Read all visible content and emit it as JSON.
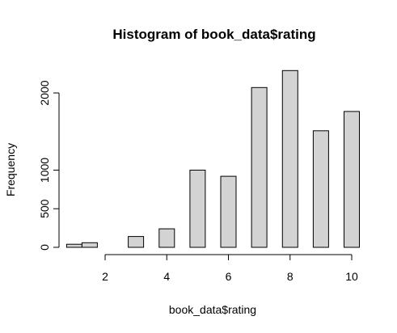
{
  "chart_data": {
    "type": "bar",
    "title": "Histogram of book_data$rating",
    "xlabel": "book_data$rating",
    "ylabel": "Frequency",
    "bin_centers": [
      1,
      1.5,
      3,
      4,
      5,
      6,
      7,
      8,
      9,
      10
    ],
    "values": [
      40,
      60,
      140,
      240,
      1000,
      920,
      2070,
      2290,
      1510,
      1760
    ],
    "x_ticks": [
      2,
      4,
      6,
      8,
      10
    ],
    "y_ticks": [
      0,
      500,
      1000,
      2000
    ],
    "xlim": [
      1,
      10
    ],
    "ylim": [
      0,
      2300
    ],
    "colors": {
      "bar_fill": "#d3d3d3",
      "bar_stroke": "#000000"
    },
    "grid": false
  }
}
